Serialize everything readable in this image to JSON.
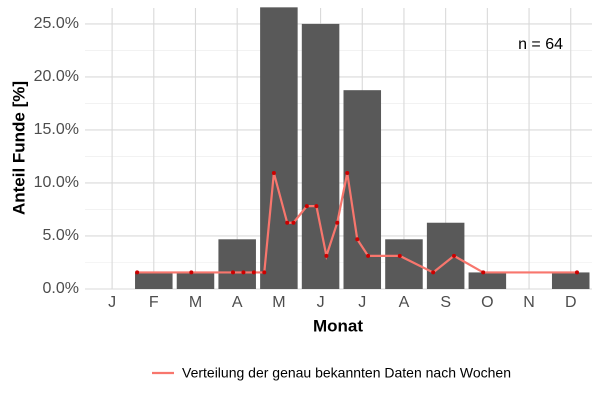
{
  "chart_data": {
    "type": "bar",
    "annotation": "n = 64",
    "x_label": "Monat",
    "y_label": "Anteil Funde [%]",
    "categories": [
      "J",
      "F",
      "M",
      "A",
      "M",
      "J",
      "J",
      "A",
      "S",
      "O",
      "N",
      "D"
    ],
    "values": [
      0,
      1.5625,
      1.5625,
      4.6875,
      26.5625,
      25,
      18.75,
      4.6875,
      6.25,
      1.5625,
      0,
      1.5625
    ],
    "color": "#595959",
    "xlim": [
      0.35,
      12.51
    ],
    "ylim": [
      0,
      26.5
    ],
    "yticks": [
      {
        "value": 0,
        "label": "0.0%"
      },
      {
        "value": 5,
        "label": "5.0%"
      },
      {
        "value": 10,
        "label": "10.0%"
      },
      {
        "value": 15,
        "label": "15.0%"
      },
      {
        "value": 20,
        "label": "20.0%"
      },
      {
        "value": 25,
        "label": "25.0%"
      }
    ],
    "grid": true,
    "line": {
      "name": "Verteilung der genau bekannten Daten nach Wochen",
      "color": "#f8766d",
      "x": [
        1.6,
        2.9,
        3.9,
        4.15,
        4.4,
        4.65,
        4.88,
        5.2,
        5.35,
        5.67,
        5.9,
        6.14,
        6.4,
        6.64,
        6.88,
        7.14,
        7.9,
        8.7,
        9.2,
        9.9,
        12.15
      ],
      "values": [
        1.5625,
        1.5625,
        1.5625,
        1.5625,
        1.5625,
        1.5625,
        10.9375,
        6.25,
        6.25,
        7.8125,
        7.8125,
        3.125,
        6.25,
        10.9375,
        4.6875,
        3.125,
        3.125,
        1.5625,
        3.125,
        1.5625,
        1.5625
      ]
    }
  }
}
